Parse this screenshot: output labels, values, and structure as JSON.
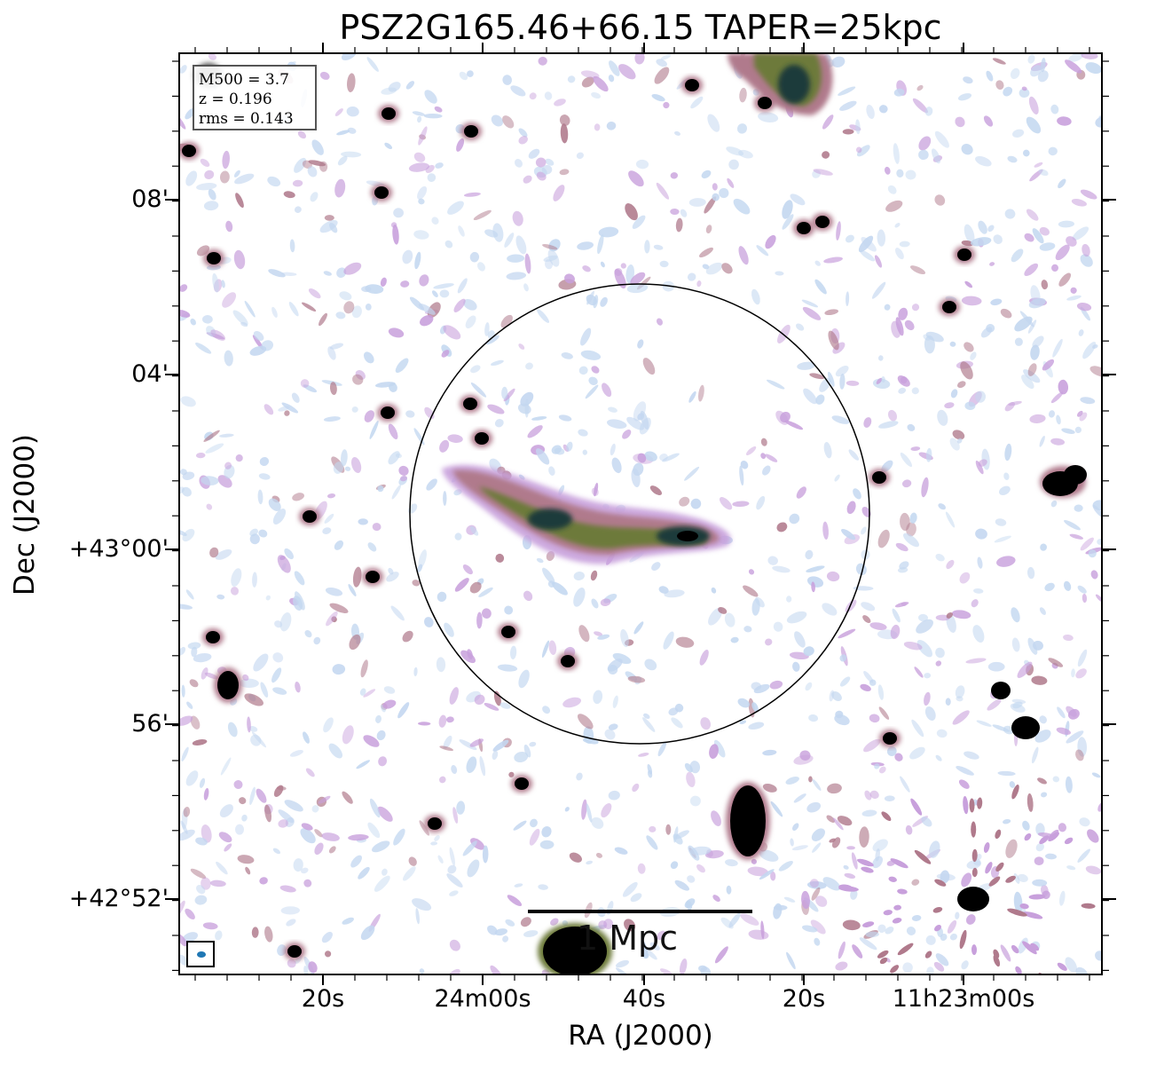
{
  "title": "PSZ2G165.46+66.15 TAPER=25kpc",
  "axes": {
    "xlabel": "RA (J2000)",
    "ylabel": "Dec (J2000)",
    "x_ticks": [
      "20s",
      "24m00s",
      "40s",
      "20s",
      "11h23m00s"
    ],
    "y_ticks": [
      "08'",
      "04'",
      "+43°00'",
      "56'",
      "+42°52'"
    ]
  },
  "info": {
    "m500": "M500 = 3.7",
    "z": "z = 0.196",
    "rms": "rms = 0.143"
  },
  "scale_bar": {
    "label": "1 Mpc"
  },
  "colors": {
    "faint": "#c3d7f0",
    "low": "#c8a0dc",
    "mid": "#b07a8c",
    "high": "#6d7a3a",
    "peak": "#1e3a3a",
    "core": "#000000"
  }
}
